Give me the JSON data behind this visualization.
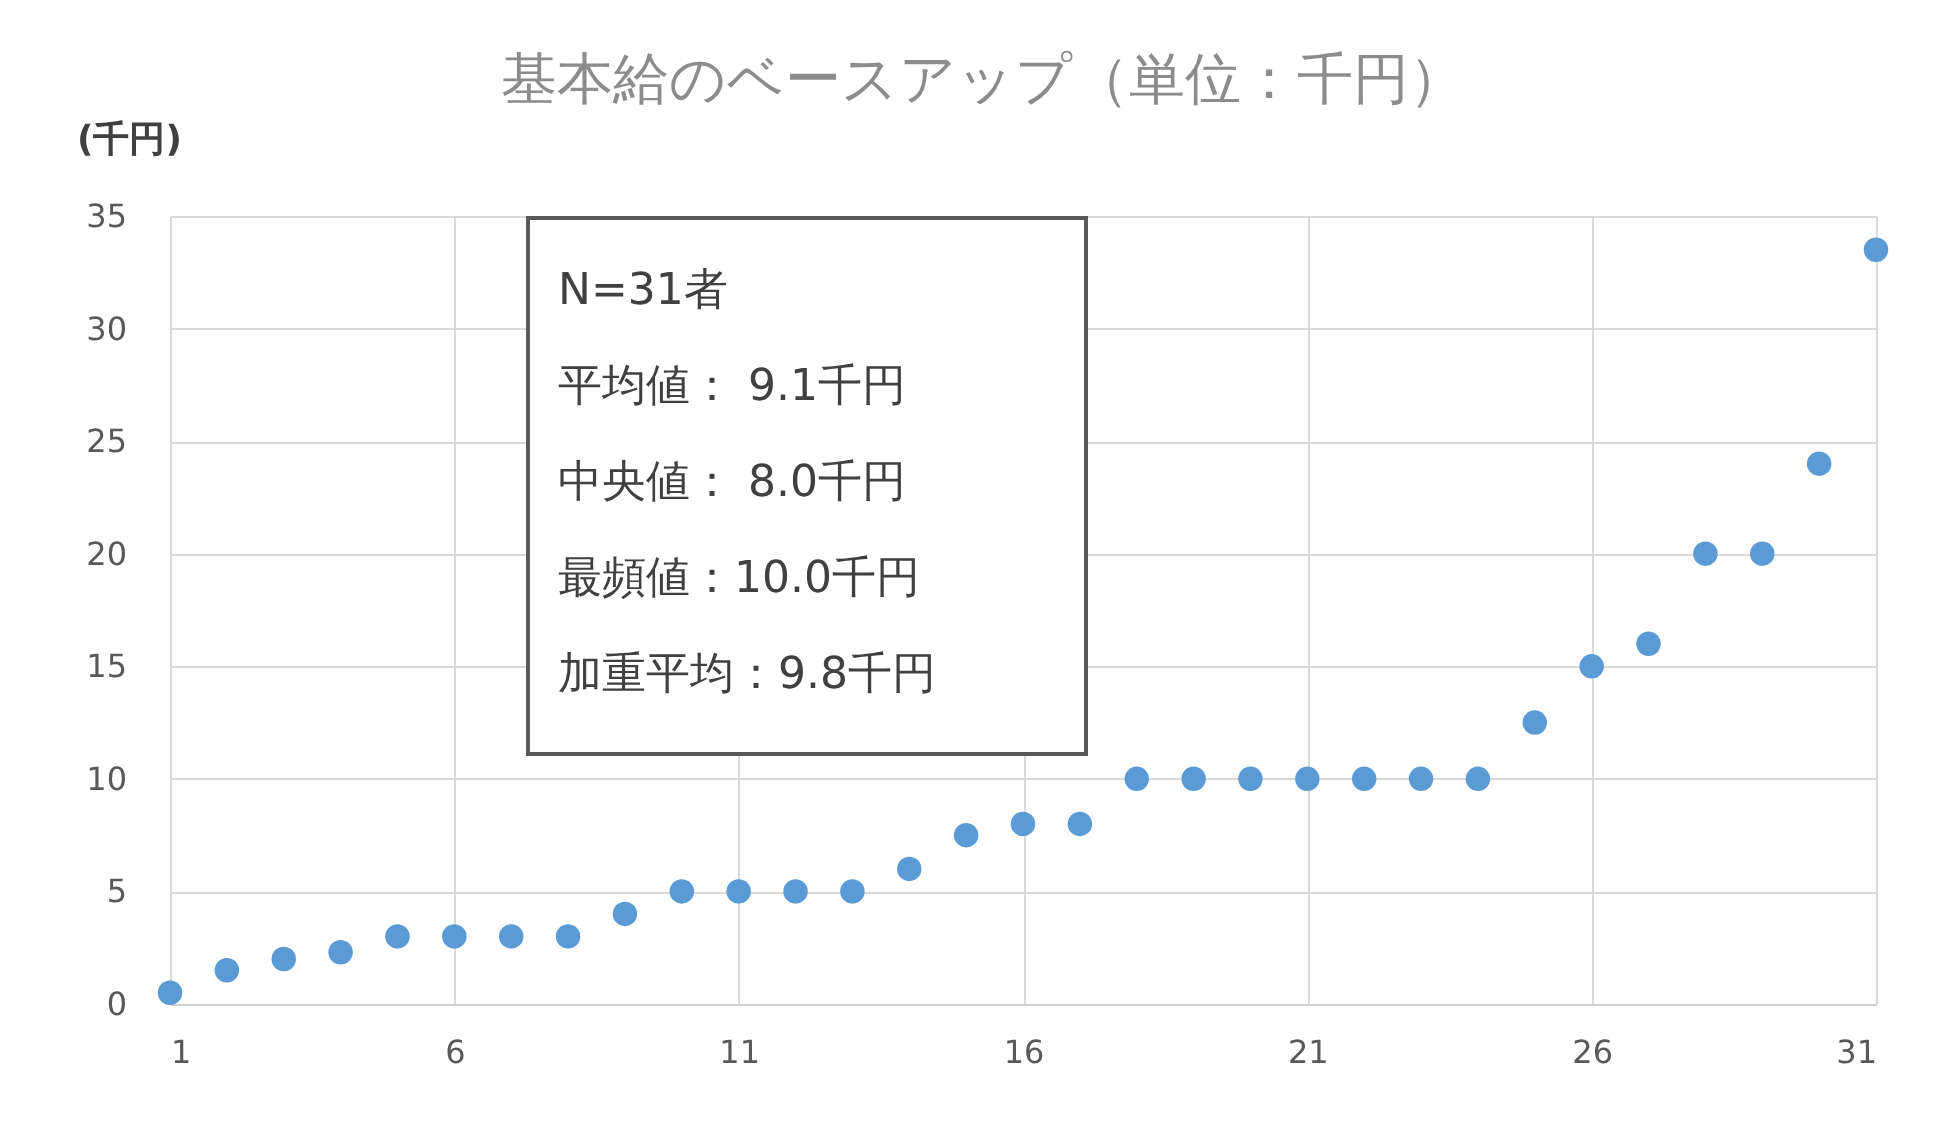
{
  "chart_data": {
    "type": "scatter",
    "title": "基本給のベースアップ（単位：千円）",
    "ylabel": "(千円)",
    "x": [
      1,
      2,
      3,
      4,
      5,
      6,
      7,
      8,
      9,
      10,
      11,
      12,
      13,
      14,
      15,
      16,
      17,
      18,
      19,
      20,
      21,
      22,
      23,
      24,
      25,
      26,
      27,
      28,
      29,
      30,
      31
    ],
    "values": [
      0.5,
      1.5,
      2,
      2.3,
      3,
      3,
      3,
      3,
      4,
      5,
      5,
      5,
      5,
      6,
      7.5,
      8,
      8,
      10,
      10,
      10,
      10,
      10,
      10,
      10,
      12.5,
      15,
      16,
      20,
      20,
      24,
      33.5
    ],
    "color": "#5b9bd5",
    "marker": "circle",
    "grid": true,
    "xlim": [
      1,
      31
    ],
    "xticks": [
      1,
      6,
      11,
      16,
      21,
      26,
      31
    ],
    "ylim": [
      0,
      35
    ],
    "yticks": [
      0,
      5,
      10,
      15,
      20,
      25,
      30,
      35
    ],
    "annotations": [
      "N=31者",
      "平均値： 9.1千円",
      "中央値： 8.0千円",
      "最頻値：10.0千円",
      "加重平均：9.8千円"
    ]
  }
}
